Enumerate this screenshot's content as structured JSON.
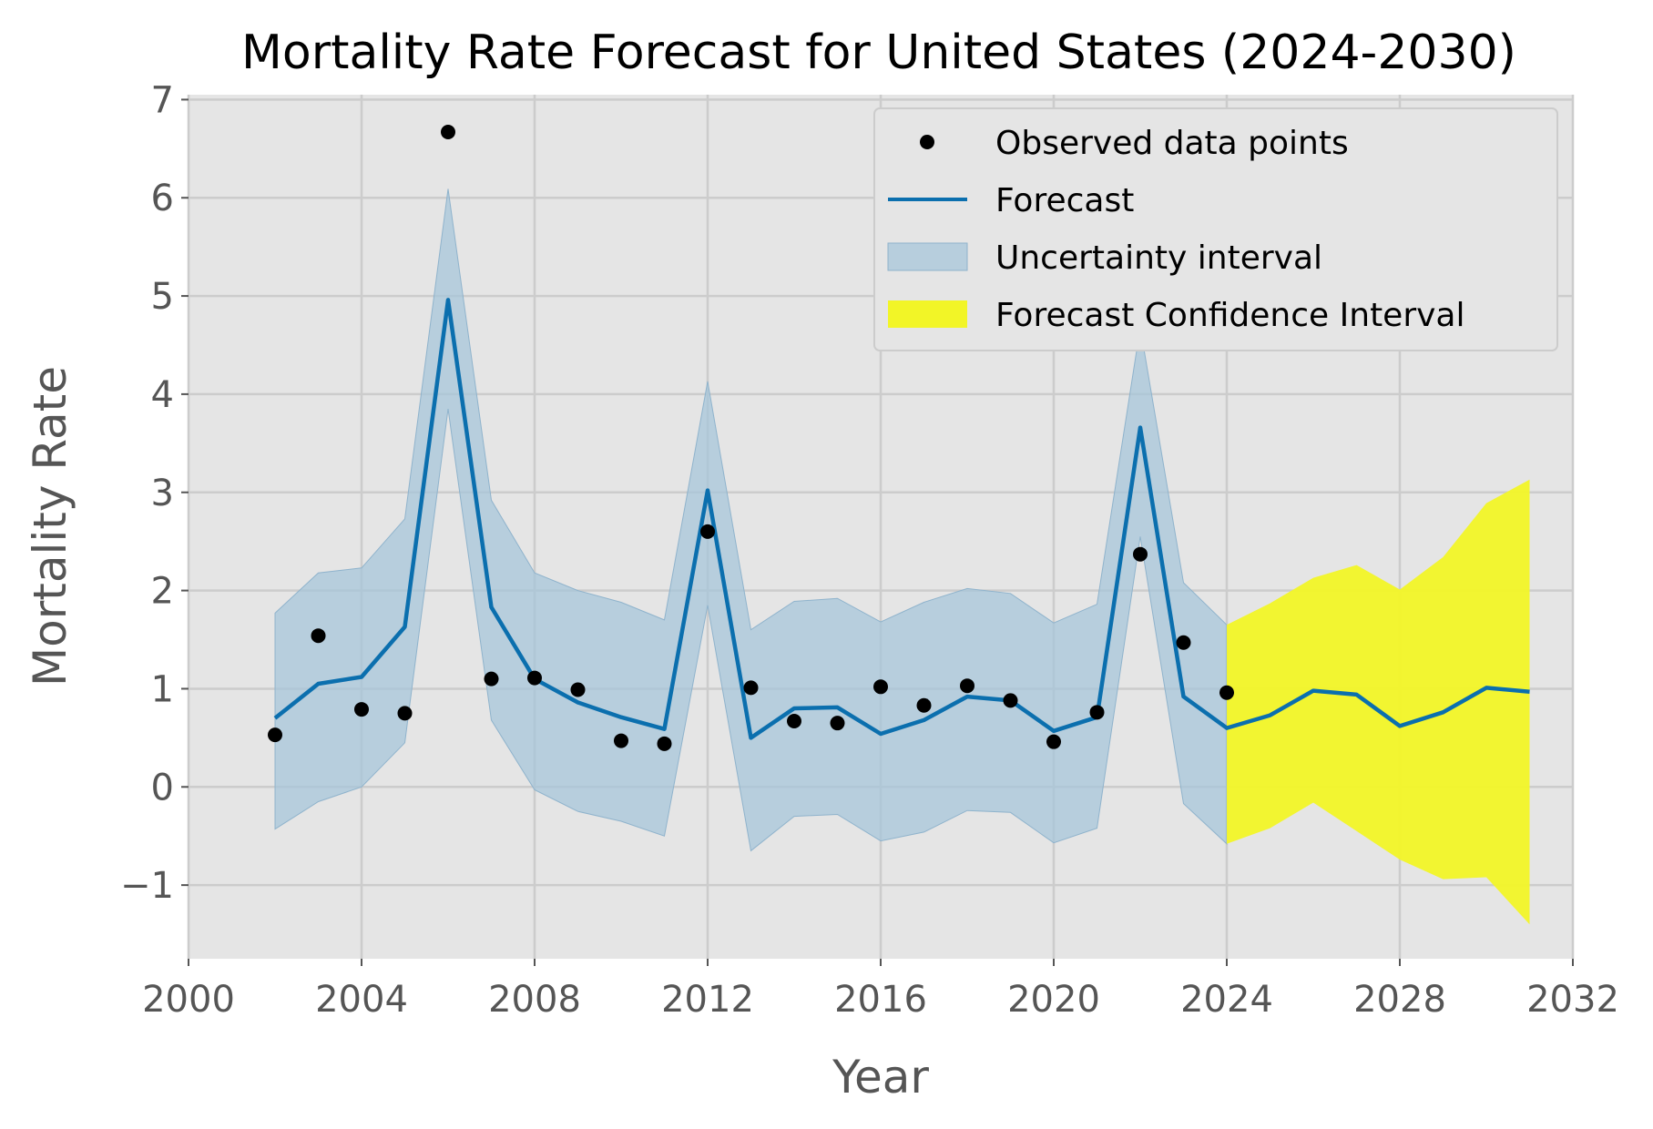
{
  "chart_data": {
    "type": "line",
    "title": "Mortality Rate Forecast for United States (2024-2030)",
    "xlabel": "Year",
    "ylabel": "Mortality Rate",
    "xlim": [
      2000,
      2032
    ],
    "ylim": [
      -1.75,
      7.05
    ],
    "xticks": [
      2000,
      2004,
      2008,
      2012,
      2016,
      2020,
      2024,
      2028,
      2032
    ],
    "yticks": [
      -1,
      0,
      1,
      2,
      3,
      4,
      5,
      6,
      7
    ],
    "grid": true,
    "legend_position": "top-right",
    "colors": {
      "plot_bg": "#e5e5e5",
      "grid": "#cccccc",
      "forecast": "#0b6fae",
      "uncertainty": "#a7c6da",
      "forecast_ci": "#f2f527",
      "points": "#000000"
    },
    "legend": [
      {
        "key": "observed",
        "label": "Observed data points"
      },
      {
        "key": "forecast",
        "label": "Forecast"
      },
      {
        "key": "uncertainty",
        "label": "Uncertainty interval"
      },
      {
        "key": "forecast_ci",
        "label": "Forecast Confidence Interval"
      }
    ],
    "observed": {
      "name": "Observed data points",
      "x": [
        2002,
        2003,
        2004,
        2005,
        2006,
        2007,
        2008,
        2009,
        2010,
        2011,
        2012,
        2013,
        2014,
        2015,
        2016,
        2017,
        2018,
        2019,
        2020,
        2021,
        2022,
        2023,
        2024
      ],
      "y": [
        0.53,
        1.54,
        0.79,
        0.75,
        6.67,
        1.1,
        1.11,
        0.99,
        0.47,
        0.44,
        2.6,
        1.01,
        0.67,
        0.65,
        1.02,
        0.83,
        1.03,
        0.88,
        0.46,
        0.76,
        2.37,
        1.47,
        0.96
      ]
    },
    "forecast": {
      "name": "Forecast",
      "x": [
        2002,
        2003,
        2004,
        2005,
        2006,
        2007,
        2008,
        2009,
        2010,
        2011,
        2012,
        2013,
        2014,
        2015,
        2016,
        2017,
        2018,
        2019,
        2020,
        2021,
        2022,
        2023,
        2024,
        2025,
        2026,
        2027,
        2028,
        2029,
        2030,
        2031
      ],
      "y": [
        0.7,
        1.05,
        1.12,
        1.63,
        4.96,
        1.83,
        1.1,
        0.86,
        0.71,
        0.59,
        3.02,
        0.5,
        0.8,
        0.81,
        0.54,
        0.68,
        0.92,
        0.88,
        0.57,
        0.71,
        3.66,
        0.92,
        0.6,
        0.73,
        0.98,
        0.94,
        0.62,
        0.76,
        1.01,
        0.97
      ]
    },
    "uncertainty": {
      "name": "Uncertainty interval",
      "x": [
        2002,
        2003,
        2004,
        2005,
        2006,
        2007,
        2008,
        2009,
        2010,
        2011,
        2012,
        2013,
        2014,
        2015,
        2016,
        2017,
        2018,
        2019,
        2020,
        2021,
        2022,
        2023,
        2024
      ],
      "lower": [
        -0.43,
        -0.15,
        0.0,
        0.45,
        3.85,
        0.68,
        -0.03,
        -0.25,
        -0.35,
        -0.5,
        1.85,
        -0.65,
        -0.3,
        -0.28,
        -0.55,
        -0.46,
        -0.24,
        -0.26,
        -0.57,
        -0.42,
        2.55,
        -0.17,
        -0.58
      ],
      "upper": [
        1.77,
        2.18,
        2.23,
        2.73,
        6.09,
        2.92,
        2.18,
        2.0,
        1.88,
        1.7,
        4.13,
        1.6,
        1.89,
        1.92,
        1.68,
        1.88,
        2.02,
        1.97,
        1.67,
        1.86,
        4.68,
        2.08,
        1.65
      ]
    },
    "forecast_ci": {
      "name": "Forecast Confidence Interval",
      "x": [
        2024,
        2025,
        2026,
        2027,
        2028,
        2029,
        2030,
        2031
      ],
      "lower": [
        -0.58,
        -0.42,
        -0.16,
        -0.45,
        -0.74,
        -0.94,
        -0.92,
        -1.4
      ],
      "upper": [
        1.65,
        1.87,
        2.13,
        2.26,
        2.01,
        2.34,
        2.89,
        3.13
      ]
    }
  }
}
